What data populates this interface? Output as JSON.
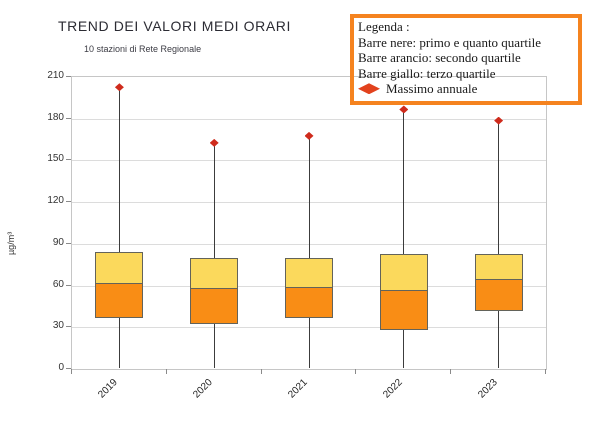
{
  "header": {
    "title": "TREND DEI VALORI MEDI ORARI",
    "subtitle": "10 stazioni di Rete Regionale"
  },
  "legend": {
    "title": "Legenda :",
    "lines": [
      "Barre nere: primo e quanto quartile",
      "Barre arancio: secondo quartile",
      "Barre giallo: terzo quartile"
    ],
    "marker_label": "Massimo annuale",
    "border_color": "#f5831f",
    "marker_color": "#e2421d"
  },
  "chart_data": {
    "type": "boxplot",
    "title": "TREND DEI VALORI MEDI ORARI",
    "subtitle": "10 stazioni di Rete Regionale",
    "xlabel": "",
    "ylabel": "µg/m³",
    "ylim": [
      0,
      210
    ],
    "y_ticks": [
      0,
      30,
      60,
      90,
      120,
      150,
      180,
      210
    ],
    "grid": true,
    "legend_position": "top-right",
    "categories": [
      "2019",
      "2020",
      "2021",
      "2022",
      "2023"
    ],
    "series": [
      {
        "year": "2019",
        "min": 1,
        "q1": 37,
        "median": 62,
        "q3": 84,
        "max": 203
      },
      {
        "year": "2020",
        "min": 1,
        "q1": 32,
        "median": 58,
        "q3": 80,
        "max": 163
      },
      {
        "year": "2021",
        "min": 1,
        "q1": 37,
        "median": 59,
        "q3": 80,
        "max": 168
      },
      {
        "year": "2022",
        "min": 1,
        "q1": 28,
        "median": 57,
        "q3": 83,
        "max": 187
      },
      {
        "year": "2023",
        "min": 1,
        "q1": 42,
        "median": 65,
        "q3": 83,
        "max": 179
      }
    ],
    "colors": {
      "box_lower": "#f98d15",
      "box_upper": "#fbd95c",
      "box_border": "#63635a",
      "whisker": "#3c3c3c",
      "max_marker": "#cf2b1c",
      "grid": "#dcdcdc",
      "plot_border": "#c6c6c6",
      "tick": "#8a8a8a"
    }
  }
}
